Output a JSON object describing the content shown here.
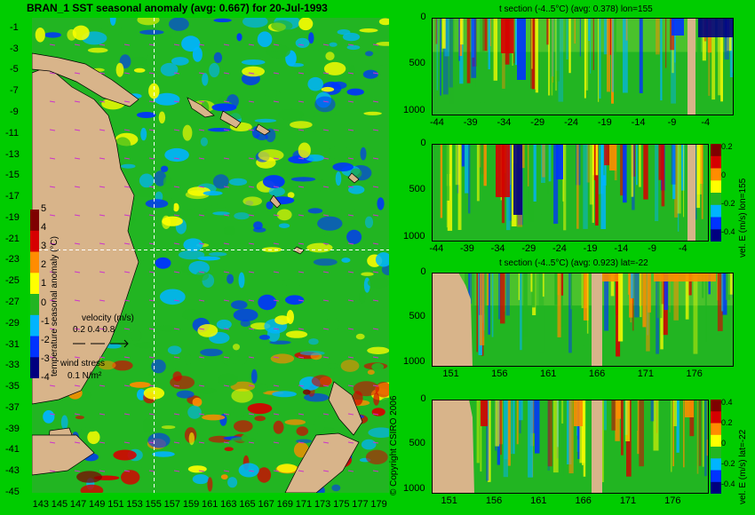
{
  "colors": {
    "background": "#00cc00",
    "land": "#d8b48a",
    "ocean_base": "#22b522",
    "palette_stops": [
      "#00007f",
      "#0033ff",
      "#00b4ff",
      "#22b522",
      "#ffff00",
      "#ff8c00",
      "#d60000",
      "#7f0000"
    ],
    "crosshair": "#ffffff",
    "wind_arrows": "#cc33cc"
  },
  "chart_data": [
    {
      "type": "heatmap",
      "title": "BRAN_1 SST seasonal anomaly (avg: 0.667) for 20-Jul-1993",
      "xlabel": "",
      "ylabel": "",
      "x_ticks": [
        "143",
        "145",
        "147",
        "149",
        "151",
        "153",
        "155",
        "157",
        "159",
        "161",
        "163",
        "165",
        "167",
        "169",
        "171",
        "173",
        "175",
        "177",
        "179"
      ],
      "y_ticks": [
        "-1",
        "-3",
        "-5",
        "-7",
        "-9",
        "-11",
        "-13",
        "-15",
        "-17",
        "-19",
        "-21",
        "-23",
        "-25",
        "-27",
        "-29",
        "-31",
        "-33",
        "-35",
        "-37",
        "-39",
        "-41",
        "-43",
        "-45"
      ],
      "xlim": [
        142,
        180
      ],
      "ylim": [
        -45,
        0
      ],
      "crosshair": {
        "lon": 155,
        "lat": -22
      },
      "colorbar": {
        "label": "temperature seasonal anomaly (°C)",
        "ticks": [
          "5",
          "4",
          "3",
          "2",
          "1",
          "0",
          "-1",
          "-2",
          "-3",
          "-4"
        ],
        "range": [
          -4,
          5
        ]
      },
      "legend": {
        "velocity_label": "velocity (m/s)",
        "velocity_scale": "0.2 0.4 0.8",
        "wind_label": "wind stress",
        "wind_scale": "0.1 N/m²"
      }
    },
    {
      "type": "heatmap",
      "title": "t section (-4..5°C) (avg: 0.378) lon=155",
      "x_ticks": [
        "-44",
        "-39",
        "-34",
        "-29",
        "-24",
        "-19",
        "-14",
        "-9",
        "-4"
      ],
      "y_ticks": [
        "0",
        "500",
        "1000"
      ],
      "xlim": [
        -45,
        0
      ],
      "ylim": [
        1050,
        0
      ]
    },
    {
      "type": "heatmap",
      "title": "",
      "x_ticks": [
        "-44",
        "-39",
        "-34",
        "-29",
        "-24",
        "-19",
        "-14",
        "-9",
        "-4"
      ],
      "y_ticks": [
        "0",
        "500",
        "1000"
      ],
      "xlim": [
        -45,
        0
      ],
      "ylim": [
        1050,
        0
      ],
      "colorbar": {
        "label": "vel. E (m/s) lon=155",
        "ticks": [
          "0.2",
          "0",
          "-0.2",
          "-0.4"
        ]
      }
    },
    {
      "type": "heatmap",
      "title": "t section (-4..5°C) (avg: 0.923) lat=-22",
      "x_ticks": [
        "151",
        "156",
        "161",
        "166",
        "171",
        "176"
      ],
      "y_ticks": [
        "0",
        "500",
        "1000"
      ],
      "xlim": [
        149,
        180
      ],
      "ylim": [
        1050,
        0
      ]
    },
    {
      "type": "heatmap",
      "title": "",
      "x_ticks": [
        "151",
        "156",
        "161",
        "166",
        "171",
        "176"
      ],
      "y_ticks": [
        "0",
        "500",
        "1000"
      ],
      "xlim": [
        149,
        180
      ],
      "ylim": [
        1050,
        0
      ],
      "colorbar": {
        "label": "vel. E (m/s) lat=-22",
        "ticks": [
          "0.4",
          "0.2",
          "0",
          "-0.2",
          "-0.4"
        ]
      }
    }
  ],
  "copyright": "© Copyright CSIRO 2006"
}
